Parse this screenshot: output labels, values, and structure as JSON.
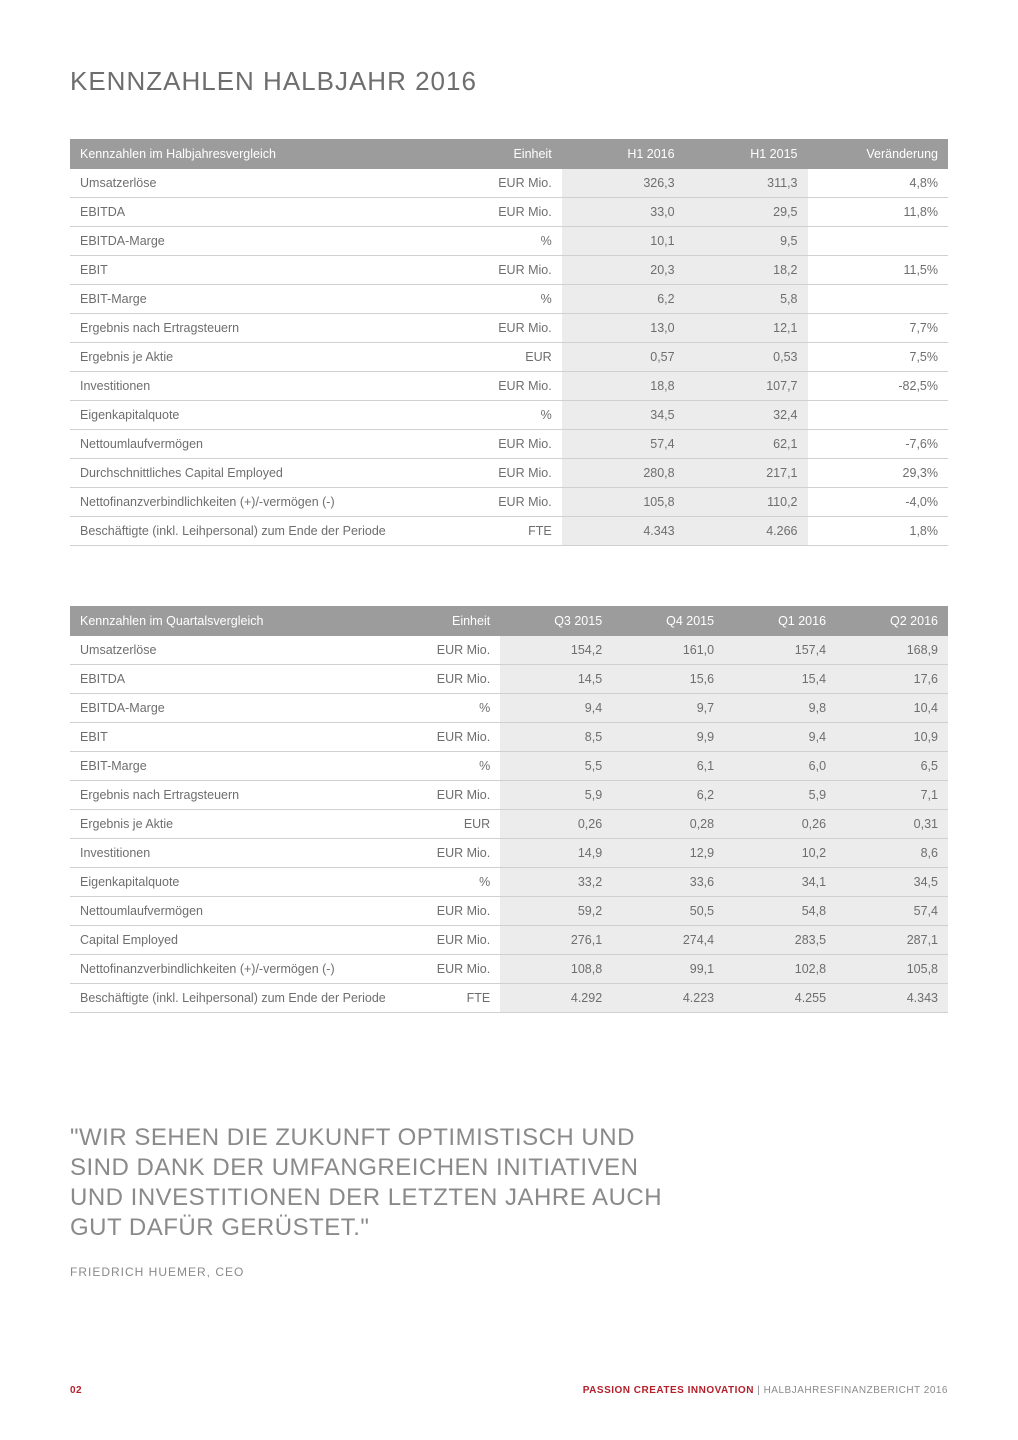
{
  "title": "KENNZAHLEN HALBJAHR 2016",
  "table1": {
    "columns": [
      "Kennzahlen im Halbjahresvergleich",
      "Einheit",
      "H1 2016",
      "H1 2015",
      "Veränderung"
    ],
    "col_widths": [
      "44%",
      "12%",
      "14%",
      "14%",
      "16%"
    ],
    "shaded_cols": [
      2,
      3
    ],
    "rows": [
      [
        "Umsatzerlöse",
        "EUR Mio.",
        "326,3",
        "311,3",
        "4,8%"
      ],
      [
        "EBITDA",
        "EUR Mio.",
        "33,0",
        "29,5",
        "11,8%"
      ],
      [
        "EBITDA-Marge",
        "%",
        "10,1",
        "9,5",
        ""
      ],
      [
        "EBIT",
        "EUR Mio.",
        "20,3",
        "18,2",
        "11,5%"
      ],
      [
        "EBIT-Marge",
        "%",
        "6,2",
        "5,8",
        ""
      ],
      [
        "Ergebnis nach Ertragsteuern",
        "EUR Mio.",
        "13,0",
        "12,1",
        "7,7%"
      ],
      [
        "Ergebnis je Aktie",
        "EUR",
        "0,57",
        "0,53",
        "7,5%"
      ],
      [
        "Investitionen",
        "EUR Mio.",
        "18,8",
        "107,7",
        "-82,5%"
      ],
      [
        "Eigenkapitalquote",
        "%",
        "34,5",
        "32,4",
        ""
      ],
      [
        "Nettoumlaufvermögen",
        "EUR Mio.",
        "57,4",
        "62,1",
        "-7,6%"
      ],
      [
        "Durchschnittliches Capital Employed",
        "EUR Mio.",
        "280,8",
        "217,1",
        "29,3%"
      ],
      [
        "Nettofinanzverbindlichkeiten (+)/-vermögen (-)",
        "EUR Mio.",
        "105,8",
        "110,2",
        "-4,0%"
      ],
      [
        "Beschäftigte (inkl. Leihpersonal) zum Ende der Periode",
        "FTE",
        "4.343",
        "4.266",
        "1,8%"
      ]
    ]
  },
  "table2": {
    "columns": [
      "Kennzahlen im Quartalsvergleich",
      "Einheit",
      "Q3 2015",
      "Q4 2015",
      "Q1 2016",
      "Q2 2016"
    ],
    "col_widths": [
      "38%",
      "11%",
      "12.75%",
      "12.75%",
      "12.75%",
      "12.75%"
    ],
    "shaded_cols": [
      2,
      3,
      4,
      5
    ],
    "rows": [
      [
        "Umsatzerlöse",
        "EUR Mio.",
        "154,2",
        "161,0",
        "157,4",
        "168,9"
      ],
      [
        "EBITDA",
        "EUR Mio.",
        "14,5",
        "15,6",
        "15,4",
        "17,6"
      ],
      [
        "EBITDA-Marge",
        "%",
        "9,4",
        "9,7",
        "9,8",
        "10,4"
      ],
      [
        "EBIT",
        "EUR Mio.",
        "8,5",
        "9,9",
        "9,4",
        "10,9"
      ],
      [
        "EBIT-Marge",
        "%",
        "5,5",
        "6,1",
        "6,0",
        "6,5"
      ],
      [
        "Ergebnis nach Ertragsteuern",
        "EUR Mio.",
        "5,9",
        "6,2",
        "5,9",
        "7,1"
      ],
      [
        "Ergebnis je Aktie",
        "EUR",
        "0,26",
        "0,28",
        "0,26",
        "0,31"
      ],
      [
        "Investitionen",
        "EUR Mio.",
        "14,9",
        "12,9",
        "10,2",
        "8,6"
      ],
      [
        "Eigenkapitalquote",
        "%",
        "33,2",
        "33,6",
        "34,1",
        "34,5"
      ],
      [
        "Nettoumlaufvermögen",
        "EUR Mio.",
        "59,2",
        "50,5",
        "54,8",
        "57,4"
      ],
      [
        "Capital Employed",
        "EUR Mio.",
        "276,1",
        "274,4",
        "283,5",
        "287,1"
      ],
      [
        "Nettofinanzverbindlichkeiten (+)/-vermögen (-)",
        "EUR Mio.",
        "108,8",
        "99,1",
        "102,8",
        "105,8"
      ],
      [
        "Beschäftigte (inkl. Leihpersonal) zum Ende der Periode",
        "FTE",
        "4.292",
        "4.223",
        "4.255",
        "4.343"
      ]
    ]
  },
  "quote": "\"WIR SEHEN DIE ZUKUNFT OPTIMISTISCH UND SIND DANK DER UMFANGREICHEN INITIATIVEN UND INVESTITIONEN DER LETZTEN JAHRE AUCH GUT DAFÜR GERÜSTET.\"",
  "quote_attr": "FRIEDRICH HUEMER, CEO",
  "footer": {
    "page_num": "02",
    "text_red": "PASSION CREATES INNOVATION",
    "text_sep": " | ",
    "text_grey": "HALBJAHRESFINANZBERICHT 2016"
  },
  "colors": {
    "header_bg": "#9c9c9c",
    "shade_bg": "#ececec",
    "text": "#6e6e6e",
    "accent": "#b41f2a"
  }
}
